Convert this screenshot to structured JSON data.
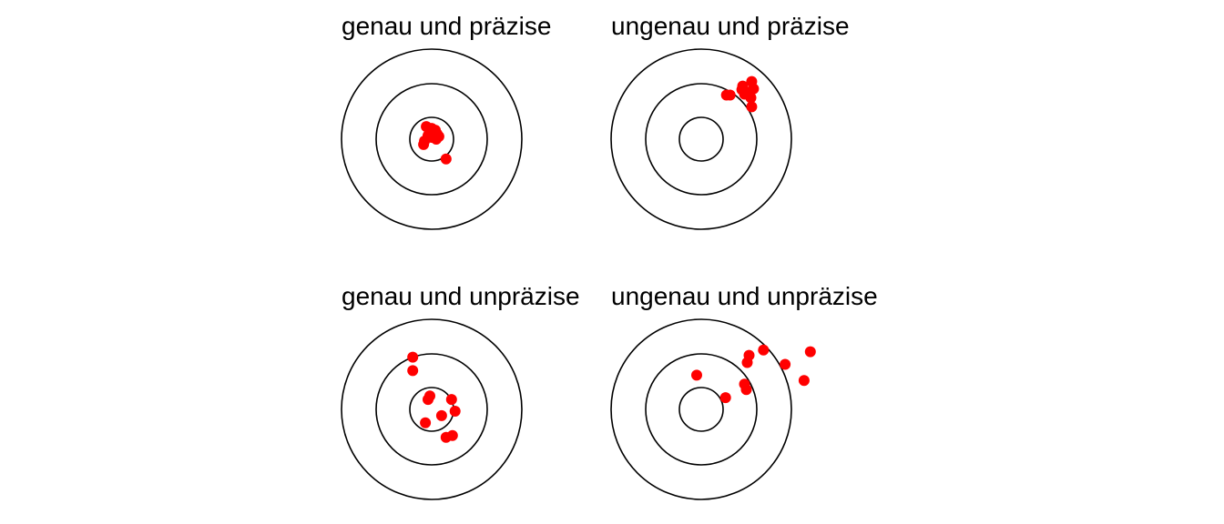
{
  "colors": {
    "background": "#ffffff",
    "ring": "#000000",
    "shot": "#ff0000",
    "text": "#000000"
  },
  "panels": [
    {
      "id": "accurate-precise",
      "title": "genau und präzise",
      "shots": [
        [
          -0.06,
          0.14
        ],
        [
          0.0,
          0.12
        ],
        [
          0.04,
          0.1
        ],
        [
          -0.02,
          0.08
        ],
        [
          0.06,
          0.06
        ],
        [
          0.02,
          0.05
        ],
        [
          -0.04,
          0.04
        ],
        [
          0.08,
          0.03
        ],
        [
          0.0,
          0.02
        ],
        [
          0.05,
          0.0
        ],
        [
          -0.08,
          -0.02
        ],
        [
          -0.09,
          -0.06
        ],
        [
          0.16,
          -0.22
        ]
      ]
    },
    {
      "id": "inaccurate-precise",
      "title": "ungenau und präzise",
      "shots": [
        [
          0.46,
          0.59
        ],
        [
          0.56,
          0.64
        ],
        [
          0.45,
          0.55
        ],
        [
          0.52,
          0.52
        ],
        [
          0.58,
          0.56
        ],
        [
          0.48,
          0.5
        ],
        [
          0.28,
          0.49
        ],
        [
          0.32,
          0.49
        ],
        [
          0.55,
          0.46
        ],
        [
          0.56,
          0.36
        ]
      ]
    },
    {
      "id": "accurate-imprecise",
      "title": "genau und unpräzise",
      "shots": [
        [
          -0.21,
          0.58
        ],
        [
          -0.21,
          0.43
        ],
        [
          -0.02,
          0.15
        ],
        [
          -0.04,
          0.11
        ],
        [
          0.22,
          0.11
        ],
        [
          0.26,
          -0.02
        ],
        [
          0.11,
          -0.07
        ],
        [
          -0.07,
          -0.15
        ],
        [
          0.23,
          -0.29
        ],
        [
          0.16,
          -0.31
        ]
      ]
    },
    {
      "id": "inaccurate-imprecise",
      "title": "ungenau und unpräzise",
      "shots": [
        [
          0.69,
          0.66
        ],
        [
          0.53,
          0.6
        ],
        [
          0.51,
          0.52
        ],
        [
          1.21,
          0.64
        ],
        [
          0.93,
          0.5
        ],
        [
          -0.05,
          0.38
        ],
        [
          0.48,
          0.28
        ],
        [
          0.5,
          0.22
        ],
        [
          1.14,
          0.32
        ],
        [
          0.27,
          0.13
        ]
      ]
    }
  ]
}
